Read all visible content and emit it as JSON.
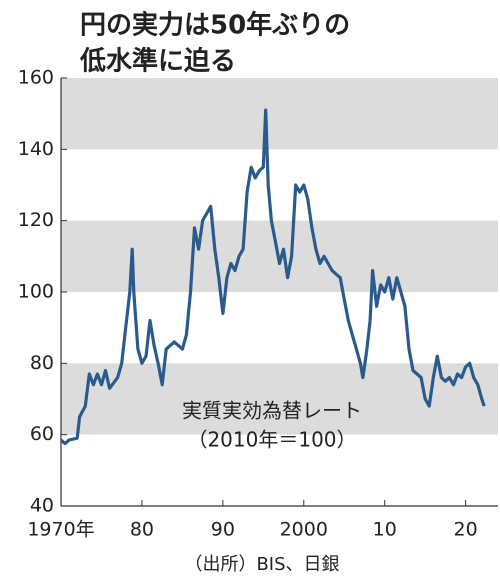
{
  "chart_data": {
    "type": "line",
    "title": [
      "円の実力は50年ぶりの",
      "低水準に迫る"
    ],
    "annotation": [
      "実質実効為替レート",
      "（2010年＝100）"
    ],
    "source": "（出所）BIS、日銀",
    "x": [
      1970,
      1970.5,
      1971,
      1972,
      1972.3,
      1973,
      1973.5,
      1974,
      1974.5,
      1975,
      1975.5,
      1976,
      1977,
      1977.5,
      1978,
      1978.5,
      1978.8,
      1979,
      1979.5,
      1980,
      1980.5,
      1981,
      1981.5,
      1982,
      1982.5,
      1983,
      1984,
      1985,
      1985.5,
      1986,
      1986.5,
      1987,
      1987.5,
      1988,
      1988.5,
      1989,
      1989.5,
      1990,
      1990.5,
      1991,
      1991.5,
      1992,
      1992.5,
      1993,
      1993.5,
      1994,
      1994.5,
      1995,
      1995.3,
      1995.6,
      1996,
      1996.5,
      1997,
      1997.5,
      1998,
      1998.5,
      1999,
      1999.5,
      2000,
      2000.5,
      2001,
      2001.5,
      2002,
      2002.5,
      2003,
      2003.5,
      2004,
      2004.5,
      2005,
      2005.5,
      2006,
      2006.5,
      2007,
      2007.3,
      2007.8,
      2008.2,
      2008.5,
      2009,
      2009.5,
      2010,
      2010.5,
      2011,
      2011.5,
      2012,
      2012.5,
      2013,
      2013.5,
      2014,
      2014.5,
      2015,
      2015.5,
      2016,
      2016.5,
      2017,
      2017.5,
      2018,
      2018.5,
      2019,
      2019.5,
      2020,
      2020.5,
      2021,
      2021.5,
      2022,
      2022.3
    ],
    "series": [
      {
        "name": "実質実効為替レート",
        "color": "#2b5b8c",
        "values": [
          58.5,
          57.5,
          58.5,
          59,
          65,
          68,
          77,
          74,
          77,
          74,
          78,
          73,
          76,
          80,
          90,
          100,
          112,
          100,
          84,
          80,
          82,
          92,
          85,
          80,
          74,
          84,
          86,
          84,
          88,
          100,
          118,
          112,
          120,
          122,
          124,
          112,
          104,
          94,
          104,
          108,
          106,
          110,
          112,
          128,
          135,
          132,
          134,
          135,
          151,
          130,
          120,
          114,
          108,
          112,
          104,
          110,
          130,
          128,
          130,
          126,
          118,
          112,
          108,
          110,
          108,
          106,
          105,
          104,
          98,
          92,
          88,
          84,
          80,
          76,
          84,
          92,
          106,
          96,
          102,
          100,
          104,
          98,
          104,
          100,
          96,
          84,
          78,
          77,
          76,
          70,
          68,
          76,
          82,
          76,
          75,
          76,
          74,
          77,
          76,
          79,
          80,
          76,
          74,
          70,
          68
        ]
      }
    ],
    "xlim": [
      1970,
      2024
    ],
    "ylim": [
      40,
      160
    ],
    "xticks": [
      {
        "value": 1970,
        "label": "1970年"
      },
      {
        "value": 1980,
        "label": "80"
      },
      {
        "value": 1990,
        "label": "90"
      },
      2000,
      {
        "value": 2010,
        "label": "10"
      },
      {
        "value": 2020,
        "label": "20"
      }
    ],
    "yticks": [
      40,
      60,
      80,
      100,
      120,
      140,
      160
    ],
    "bands": true
  }
}
